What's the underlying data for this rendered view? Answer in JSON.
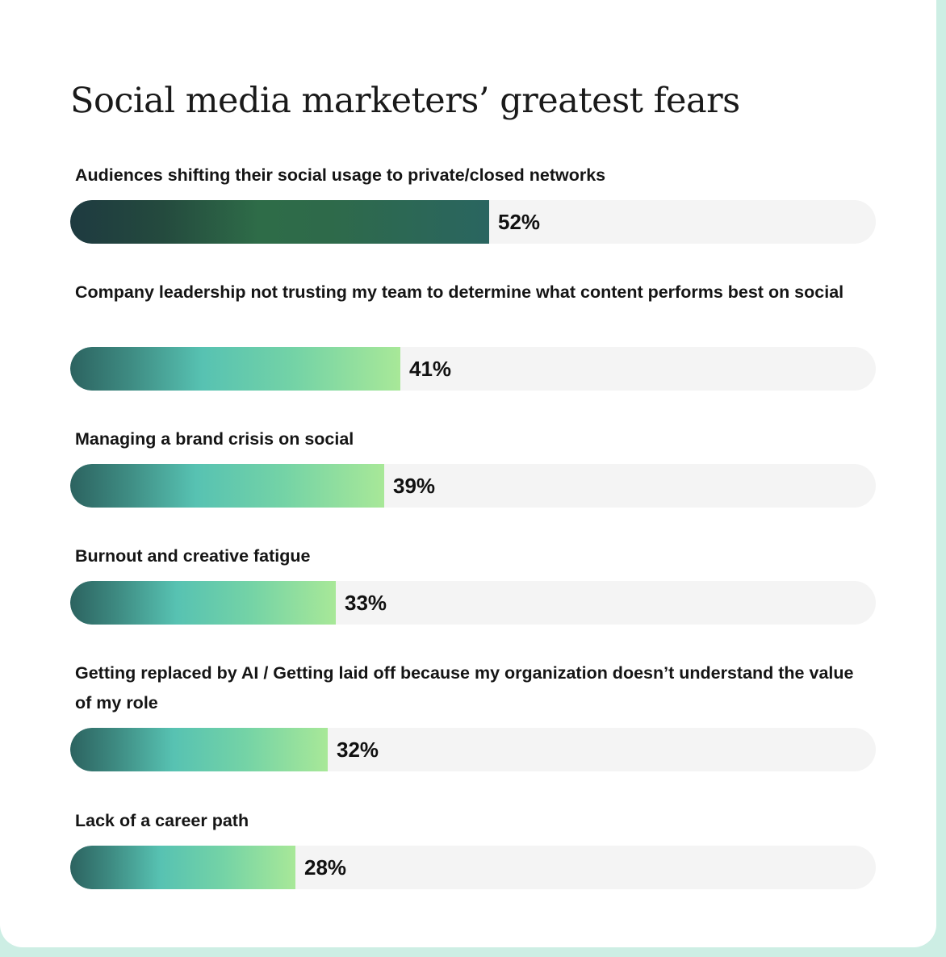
{
  "chart_data": {
    "type": "bar",
    "orientation": "horizontal",
    "title": "Social media marketers’ greatest fears",
    "xlim": [
      0,
      100
    ],
    "categories": [
      "Audiences shifting their social usage to private/closed networks",
      "Company leadership not trusting my team to determine what content performs best on social",
      "Managing a brand crisis on social",
      "Burnout and creative fatigue",
      "Getting replaced by AI / Getting laid off because my organization doesn’t understand the value of my role",
      "Lack of a career path"
    ],
    "values": [
      52,
      41,
      39,
      33,
      32,
      28
    ],
    "value_labels": [
      "52%",
      "41%",
      "39%",
      "33%",
      "32%",
      "28%"
    ],
    "colors": {
      "first_bar_gradient": [
        "#1e3a40",
        "#2e6c48",
        "#2a6560"
      ],
      "other_bars_gradient": [
        "#2c6360",
        "#57c2b2",
        "#a8e898"
      ],
      "track": "#f4f4f4"
    }
  }
}
